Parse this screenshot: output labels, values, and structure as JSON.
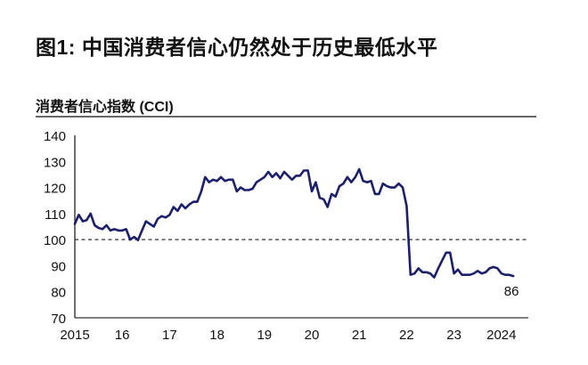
{
  "title": "图1: 中国消费者信心仍然处于历史最低水平",
  "subtitle": "消费者信心指数 (CCI)",
  "colors": {
    "line": "#1a1f6e",
    "axis": "#222222",
    "reference": "#333333"
  },
  "chart_data": {
    "type": "line",
    "title": "图1: 中国消费者信心仍然处于历史最低水平",
    "subtitle": "消费者信心指数 (CCI)",
    "xlabel": "",
    "ylabel": "",
    "ylim": [
      70,
      140
    ],
    "yticks": [
      70,
      80,
      90,
      100,
      110,
      120,
      130,
      140
    ],
    "xticks": [
      "2015",
      "16",
      "17",
      "18",
      "19",
      "20",
      "21",
      "22",
      "23",
      "2024"
    ],
    "reference_line": {
      "y": 100,
      "style": "dashed"
    },
    "end_label": "86",
    "grid": false,
    "series": [
      {
        "name": "CCI",
        "frequency": "monthly",
        "start": "2015-01",
        "values": [
          106,
          109.5,
          107,
          107.5,
          110,
          105.5,
          104.5,
          104,
          105.5,
          103.5,
          104,
          103.5,
          103.5,
          104,
          100,
          101,
          99.8,
          103.5,
          107,
          106,
          105,
          108,
          109,
          108.5,
          109.5,
          112.5,
          111,
          113.5,
          112,
          113.5,
          114.5,
          114.5,
          118.5,
          124,
          122,
          123,
          122.5,
          124,
          122.5,
          123,
          123,
          118.5,
          120,
          119,
          119,
          119.5,
          122,
          123,
          124,
          126,
          124,
          125.5,
          123.5,
          126,
          124.5,
          123,
          124.5,
          124.5,
          126.5,
          126.5,
          118.5,
          122,
          116,
          115.5,
          112.5,
          117.5,
          116.5,
          120.5,
          121.5,
          124,
          122,
          124,
          127,
          122.5,
          122,
          122.5,
          117.5,
          117.5,
          121.5,
          120.5,
          120,
          120,
          121.5,
          120,
          113,
          86.5,
          87,
          89,
          87.5,
          87.5,
          87,
          85.5,
          89,
          92,
          95,
          95,
          87,
          88.5,
          86.5,
          86.5,
          86.5,
          87,
          88,
          87,
          87.5,
          89,
          89.5,
          89,
          87,
          86.5,
          86.5,
          86
        ]
      }
    ]
  }
}
